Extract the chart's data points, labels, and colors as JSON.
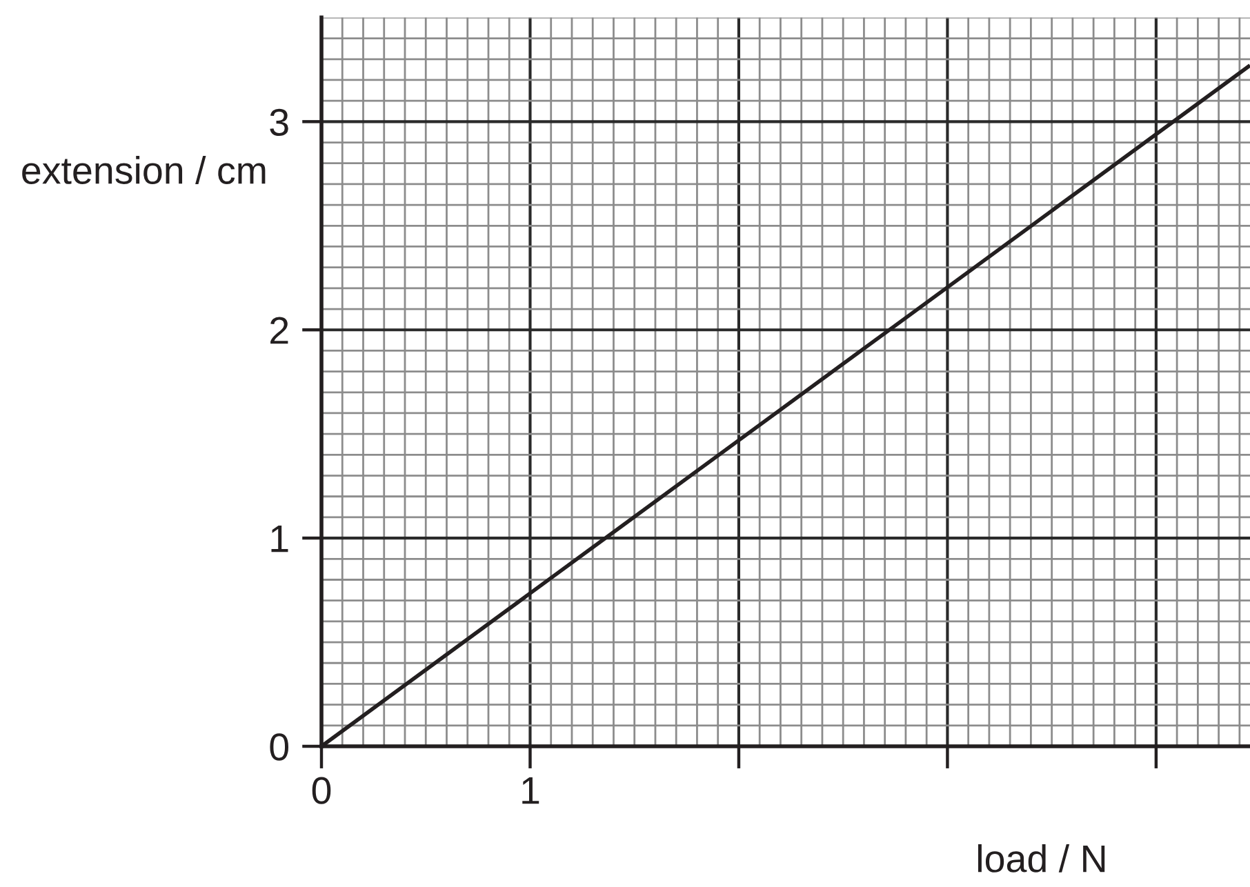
{
  "chart_data": {
    "type": "line",
    "xlabel": "load / N",
    "ylabel": "extension / cm",
    "x": [
      0,
      4.45
    ],
    "series": [
      {
        "color": "#231f20",
        "values": [
          0,
          3.27
        ]
      }
    ],
    "xlim": [
      0,
      4.45
    ],
    "ylim": [
      0,
      3.5
    ],
    "xticks": [
      0,
      1,
      {
        "value": 2,
        "label": null
      },
      {
        "value": 3,
        "label": null
      },
      {
        "value": 4,
        "label": null
      }
    ],
    "yticks": [
      0,
      1,
      2,
      3
    ],
    "grid": true
  }
}
